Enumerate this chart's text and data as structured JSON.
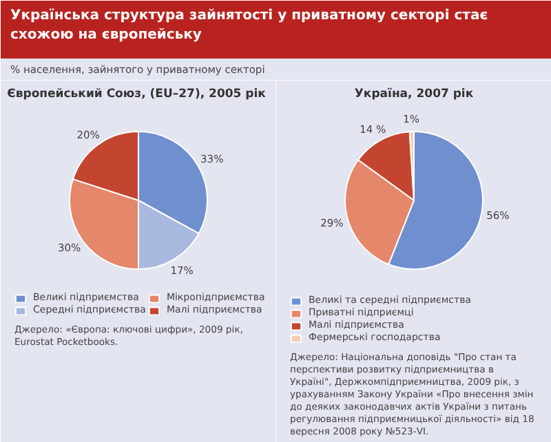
{
  "chart_data": [
    {
      "type": "other",
      "title": "Українська структура зайнятості у приватному секторі стає схожою на європейську",
      "subtitle": "% населення, зайнятого у приватному секторі"
    },
    {
      "type": "pie",
      "title": "Європейський Союз,  (EU–27), 2005 рік",
      "categories": [
        "Великі підприємства",
        "Середні підприємства",
        "Мікропідприємства",
        "Малі підприємства"
      ],
      "values": [
        33,
        17,
        30,
        20
      ],
      "value_labels": [
        "33%",
        "17%",
        "30%",
        "20%"
      ],
      "colors": [
        "#6f8fcf",
        "#a9b8df",
        "#e5876a",
        "#c4452f"
      ],
      "legend": "bottom",
      "annotations": [
        "Джерело: «Європа: ключові цифри», 2009 рік, Eurostat Pocketbooks."
      ]
    },
    {
      "type": "pie",
      "title": "Україна, 2007 рік",
      "categories": [
        "Великі та середні підприємства",
        "Приватні підприємці",
        "Малі підприємства",
        "Фермерські господарства"
      ],
      "values": [
        56,
        29,
        14,
        1
      ],
      "value_labels": [
        "56%",
        "29%",
        "14 %",
        "1%"
      ],
      "colors": [
        "#6f8fcf",
        "#e5876a",
        "#c4452f",
        "#f5cdb5"
      ],
      "legend": "bottom",
      "annotations": [
        "Джерело: Національна доповідь \"Про стан та перспективи розвитку підприємництва в Україні\", Держкомпідприємництва, 2009 рік, з урахуванням Закону України «Про внесення змін до деяких законодавчих актів України з питань регулювання підприємницької діяльності» від 18 вересня 2008 року №523-VI."
      ]
    }
  ]
}
